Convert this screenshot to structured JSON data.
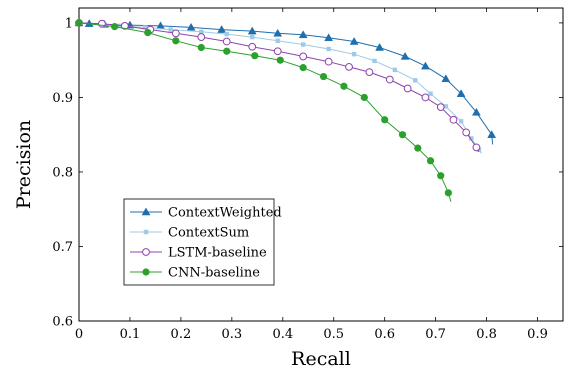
{
  "chart_data": {
    "type": "line",
    "xlabel": "Recall",
    "ylabel": "Precision",
    "xlim": [
      0,
      0.95
    ],
    "ylim": [
      0.6,
      1.02
    ],
    "xticks": [
      "0",
      "0.1",
      "0.2",
      "0.3",
      "0.4",
      "0.5",
      "0.6",
      "0.7",
      "0.8",
      "0.9"
    ],
    "yticks": [
      "0.6",
      "0.7",
      "0.8",
      "0.9",
      "1"
    ],
    "grid": false,
    "legend_position": "bottom-left",
    "series": [
      {
        "name": "ContextWeighted",
        "color": "#1f6fae",
        "marker": "triangle",
        "x": [
          0,
          0.02,
          0.05,
          0.1,
          0.16,
          0.22,
          0.28,
          0.34,
          0.39,
          0.44,
          0.49,
          0.54,
          0.59,
          0.64,
          0.68,
          0.72,
          0.75,
          0.78,
          0.81,
          0.812
        ],
        "y": [
          1.0,
          0.999,
          0.998,
          0.997,
          0.996,
          0.994,
          0.991,
          0.989,
          0.986,
          0.984,
          0.98,
          0.975,
          0.967,
          0.955,
          0.942,
          0.925,
          0.905,
          0.88,
          0.85,
          0.837
        ]
      },
      {
        "name": "ContextSum",
        "color": "#9fcae6",
        "marker": "square",
        "x": [
          0,
          0.05,
          0.08,
          0.13,
          0.18,
          0.24,
          0.29,
          0.34,
          0.39,
          0.44,
          0.49,
          0.54,
          0.58,
          0.62,
          0.66,
          0.69,
          0.72,
          0.75,
          0.77,
          0.785,
          0.79
        ],
        "y": [
          1.0,
          0.998,
          0.996,
          0.994,
          0.991,
          0.988,
          0.985,
          0.981,
          0.976,
          0.971,
          0.965,
          0.958,
          0.949,
          0.937,
          0.923,
          0.905,
          0.888,
          0.868,
          0.845,
          0.83,
          0.825
        ]
      },
      {
        "name": "LSTM-baseline",
        "color": "#8e44ad",
        "marker": "circle-open",
        "x": [
          0,
          0.045,
          0.09,
          0.14,
          0.19,
          0.24,
          0.29,
          0.34,
          0.39,
          0.44,
          0.49,
          0.53,
          0.57,
          0.61,
          0.645,
          0.68,
          0.71,
          0.735,
          0.76,
          0.78,
          0.785
        ],
        "y": [
          1.0,
          0.999,
          0.996,
          0.991,
          0.986,
          0.981,
          0.975,
          0.968,
          0.962,
          0.955,
          0.948,
          0.941,
          0.934,
          0.924,
          0.912,
          0.9,
          0.887,
          0.87,
          0.853,
          0.833,
          0.827
        ]
      },
      {
        "name": "CNN-baseline",
        "color": "#2ca02c",
        "marker": "circle-filled",
        "x": [
          0,
          0.07,
          0.135,
          0.19,
          0.24,
          0.29,
          0.345,
          0.395,
          0.44,
          0.48,
          0.52,
          0.56,
          0.6,
          0.635,
          0.665,
          0.69,
          0.71,
          0.725,
          0.73
        ],
        "y": [
          1.0,
          0.995,
          0.987,
          0.976,
          0.967,
          0.962,
          0.956,
          0.95,
          0.94,
          0.928,
          0.915,
          0.9,
          0.87,
          0.85,
          0.832,
          0.815,
          0.795,
          0.772,
          0.76
        ]
      }
    ]
  }
}
